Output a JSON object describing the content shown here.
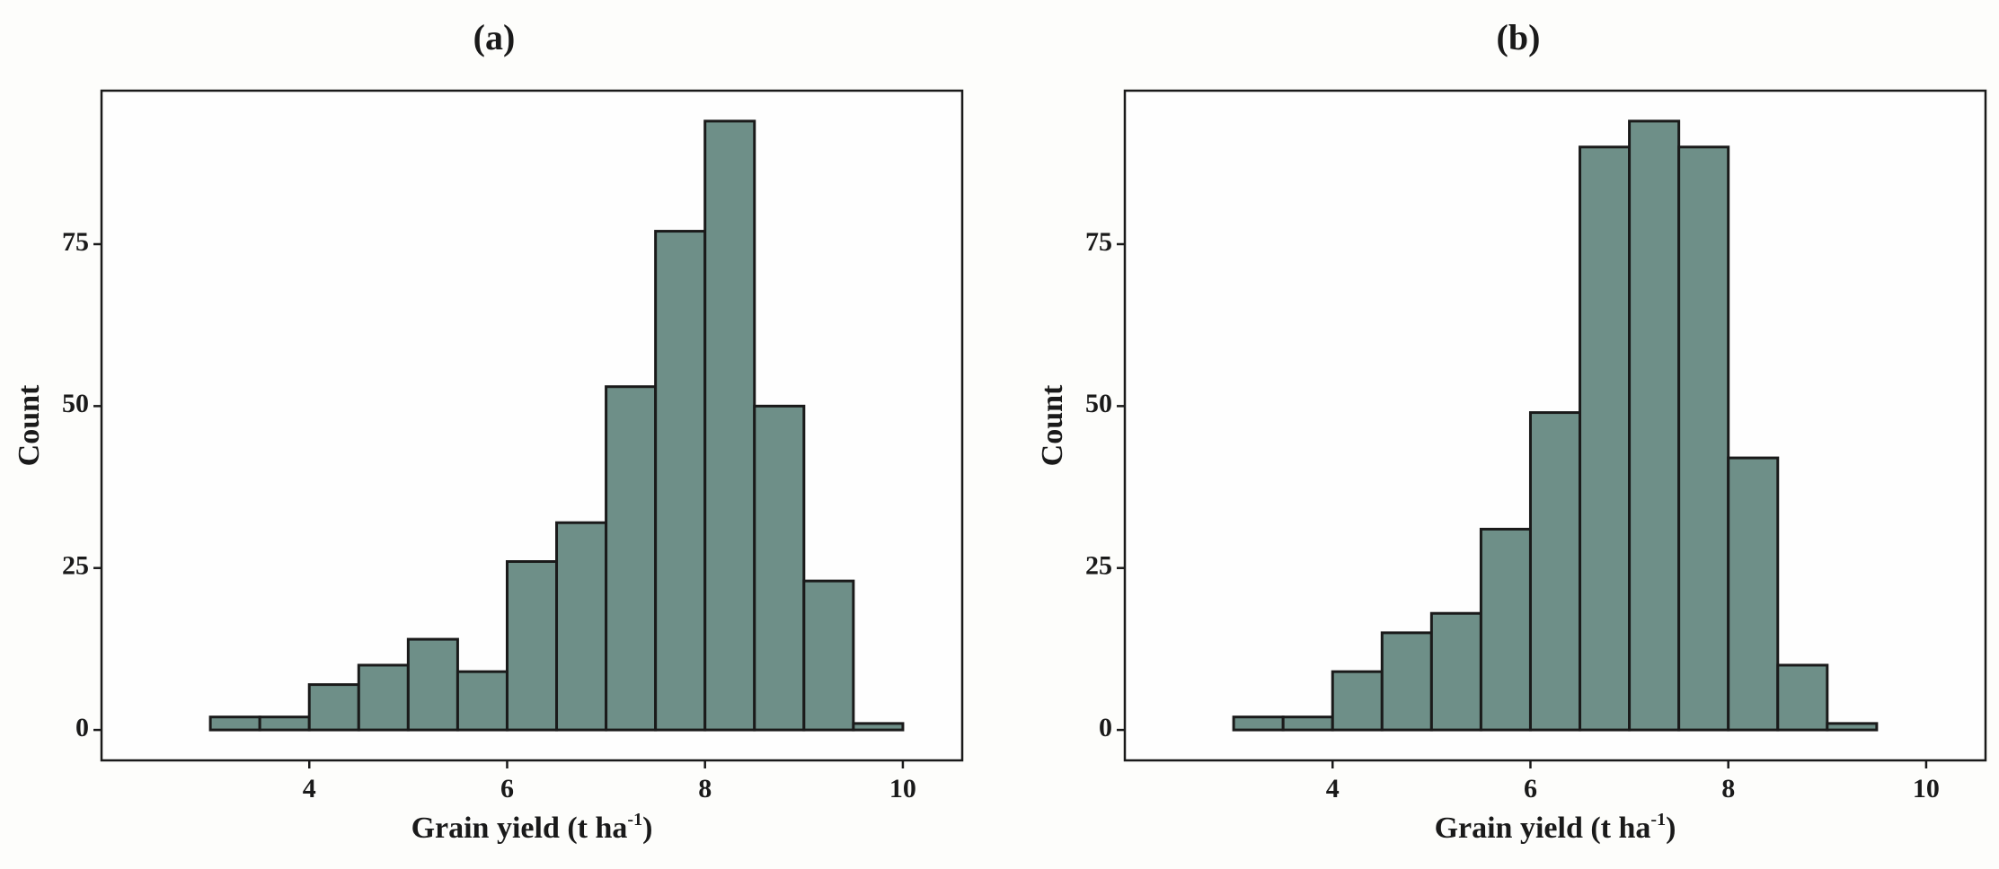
{
  "figure": {
    "colors": {
      "bar_fill": "#6e8f88",
      "bar_stroke": "#1a1a1a",
      "plot_background": "#fefefe",
      "axis": "#1a1a1a"
    }
  },
  "chart_data": [
    {
      "type": "bar",
      "panel_label": "(a)",
      "title": "(a)",
      "xlabel_main": "Grain yield (t ha",
      "xlabel_sup": "-1",
      "xlabel_close": ")",
      "ylabel": "Count",
      "bin_width": 0.5,
      "bin_starts": [
        3.0,
        3.5,
        4.0,
        4.5,
        5.0,
        5.5,
        6.0,
        6.5,
        7.0,
        7.5,
        8.0,
        8.5,
        9.0,
        9.5
      ],
      "values": [
        2,
        2,
        7,
        10,
        14,
        9,
        26,
        32,
        53,
        77,
        94,
        50,
        23,
        1
      ],
      "xlim": [
        1.9,
        10.6
      ],
      "ylim": [
        -4.7,
        98.7
      ],
      "xticks": [
        4,
        6,
        8,
        10
      ],
      "xtick_labels": [
        "4",
        "6",
        "8",
        "10"
      ],
      "yticks": [
        0,
        25,
        50,
        75
      ],
      "ytick_labels": [
        "0",
        "25",
        "50",
        "75"
      ],
      "grid": false
    },
    {
      "type": "bar",
      "panel_label": "(b)",
      "title": "(b)",
      "xlabel_main": "Grain yield (t ha",
      "xlabel_sup": "-1",
      "xlabel_close": ")",
      "ylabel": "Count",
      "bin_width": 0.5,
      "bin_starts": [
        3.0,
        3.5,
        4.0,
        4.5,
        5.0,
        5.5,
        6.0,
        6.5,
        7.0,
        7.5,
        8.0,
        8.5,
        9.0
      ],
      "values": [
        2,
        2,
        9,
        15,
        18,
        31,
        49,
        90,
        94,
        90,
        42,
        10,
        1
      ],
      "xlim": [
        1.9,
        10.6
      ],
      "ylim": [
        -4.7,
        98.7
      ],
      "xticks": [
        4,
        6,
        8,
        10
      ],
      "xtick_labels": [
        "4",
        "6",
        "8",
        "10"
      ],
      "yticks": [
        0,
        25,
        50,
        75
      ],
      "ytick_labels": [
        "0",
        "25",
        "50",
        "75"
      ],
      "grid": false
    }
  ]
}
